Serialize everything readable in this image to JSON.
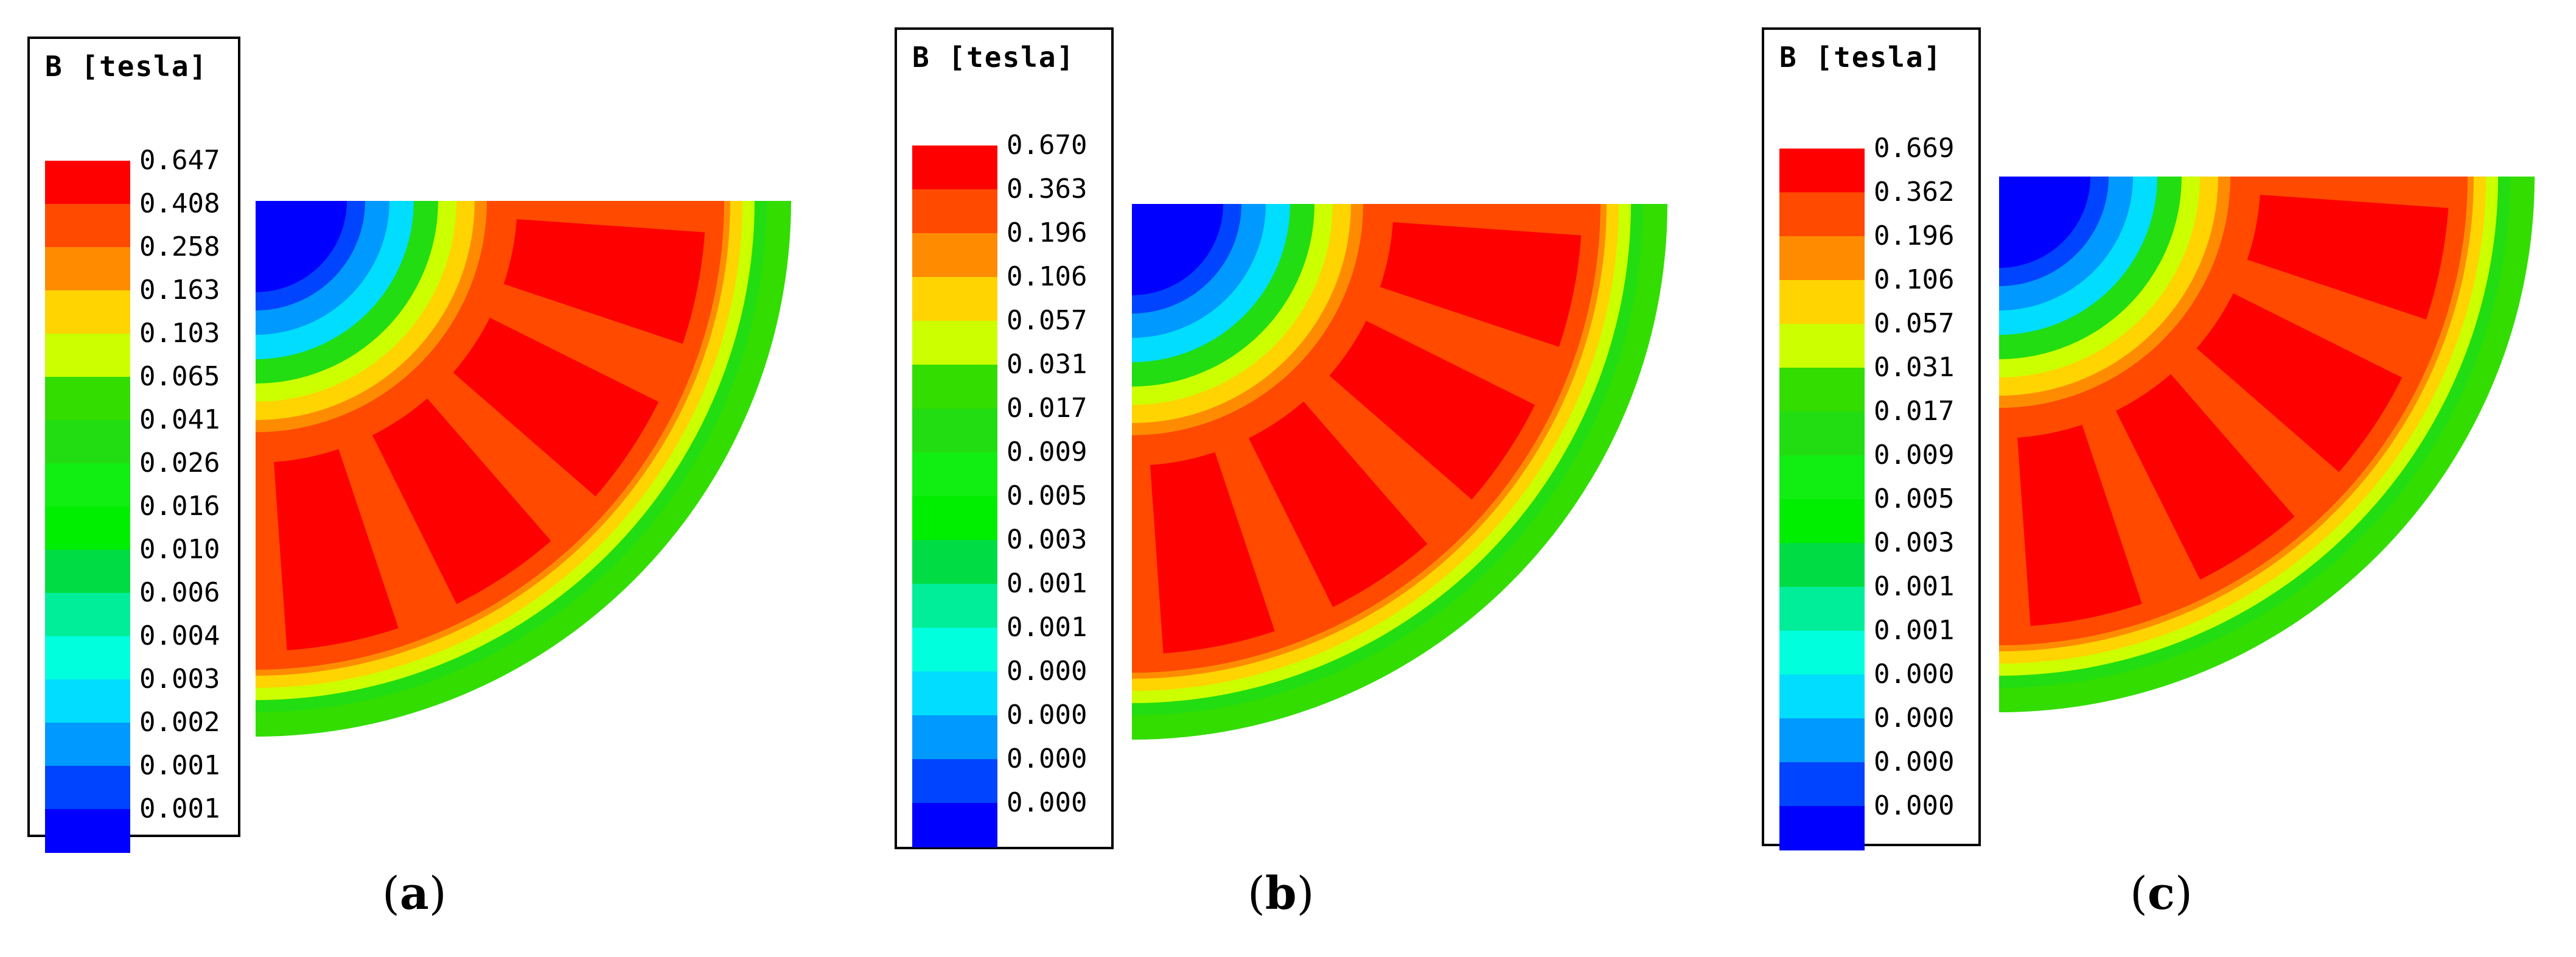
{
  "figure": {
    "panels": [
      {
        "label": "a",
        "legend_title": "B [tesla]",
        "ticks": [
          "0.647",
          "0.408",
          "0.258",
          "0.163",
          "0.103",
          "0.065",
          "0.041",
          "0.026",
          "0.016",
          "0.010",
          "0.006",
          "0.004",
          "0.003",
          "0.002",
          "0.001",
          "0.001"
        ]
      },
      {
        "label": "b",
        "legend_title": "B [tesla]",
        "ticks": [
          "0.670",
          "0.363",
          "0.196",
          "0.106",
          "0.057",
          "0.031",
          "0.017",
          "0.009",
          "0.005",
          "0.003",
          "0.001",
          "0.001",
          "0.000",
          "0.000",
          "0.000",
          "0.000"
        ]
      },
      {
        "label": "c",
        "legend_title": "B [tesla]",
        "ticks": [
          "0.669",
          "0.362",
          "0.196",
          "0.106",
          "0.057",
          "0.031",
          "0.017",
          "0.009",
          "0.005",
          "0.003",
          "0.001",
          "0.001",
          "0.000",
          "0.000",
          "0.000",
          "0.000"
        ]
      }
    ],
    "colormap": [
      "#ff0000",
      "#ff4a00",
      "#ff8c00",
      "#ffd400",
      "#ccff00",
      "#33dd00",
      "#22dd11",
      "#11ee11",
      "#00ee00",
      "#00dd44",
      "#00ee99",
      "#00ffdd",
      "#00ddff",
      "#0099ff",
      "#0044ff",
      "#0000ff"
    ],
    "caption_open": "(",
    "caption_close": ")"
  }
}
